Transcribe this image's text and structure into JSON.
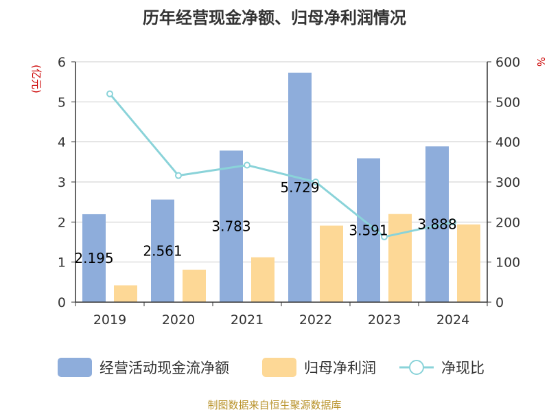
{
  "chart_data": {
    "type": "bar",
    "title": "历年经营现金净额、归母净利润情况",
    "categories": [
      "2019",
      "2020",
      "2021",
      "2022",
      "2023",
      "2024"
    ],
    "y_left": {
      "unit": "(亿元)",
      "ticks": [
        "0",
        "1",
        "2",
        "3",
        "4",
        "5",
        "6"
      ],
      "range": [
        0,
        6
      ]
    },
    "y_right": {
      "unit": "%",
      "ticks": [
        "0",
        "100",
        "200",
        "300",
        "400",
        "500",
        "600"
      ],
      "range": [
        0,
        600
      ]
    },
    "series": [
      {
        "name": "经营活动现金流净额",
        "type": "bar",
        "axis": "left",
        "color": "#8eaddb",
        "values": [
          2.195,
          2.561,
          3.783,
          5.729,
          3.591,
          3.888
        ],
        "labels": [
          "2.195",
          "2.561",
          "3.783",
          "5.729",
          "3.591",
          "3.888"
        ]
      },
      {
        "name": "归母净利润",
        "type": "bar",
        "axis": "left",
        "color": "#fdd896",
        "values": [
          0.42,
          0.81,
          1.12,
          1.91,
          2.2,
          1.94
        ]
      },
      {
        "name": "净现比",
        "type": "line",
        "axis": "right",
        "color": "#8ad3d9",
        "values": [
          520,
          316,
          342,
          300,
          163,
          200
        ]
      }
    ],
    "grid": true,
    "legend_position": "bottom",
    "source": "制图数据来自恒生聚源数据库",
    "colors": {
      "unit_left": "#cc0000",
      "unit_right": "#cc0000",
      "source": "#b8922a",
      "gridline": "#cccccc",
      "axis": "#333333"
    }
  }
}
